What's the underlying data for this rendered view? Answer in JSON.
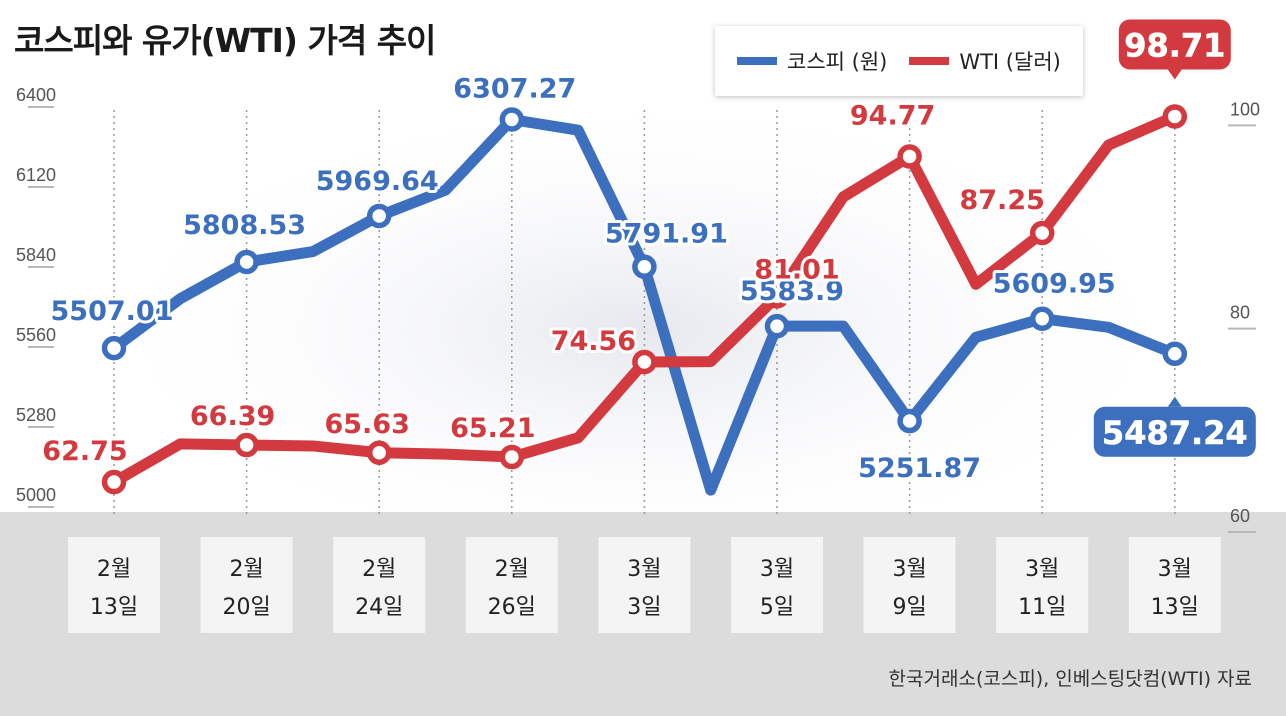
{
  "title": "코스피와 유가(WTI) 가격 추이",
  "source": "한국거래소(코스피), 인베스팅닷컴(WTI) 자료",
  "colors": {
    "kospi": "#3c6fbd",
    "wti": "#d23a40",
    "band": "#dcdcdc",
    "date_box": "#f4f4f4"
  },
  "chart_data": {
    "type": "line",
    "title": "코스피와 유가(WTI) 가격 추이",
    "x": [
      {
        "line1": "2월",
        "line2": "13일"
      },
      {
        "line1": "2월",
        "line2": "20일"
      },
      {
        "line1": "2월",
        "line2": "24일"
      },
      {
        "line1": "2월",
        "line2": "26일"
      },
      {
        "line1": "3월",
        "line2": "3일"
      },
      {
        "line1": "3월",
        "line2": "5일"
      },
      {
        "line1": "3월",
        "line2": "9일"
      },
      {
        "line1": "3월",
        "line2": "11일"
      },
      {
        "line1": "3월",
        "line2": "13일"
      }
    ],
    "left_axis": {
      "range": [
        5000,
        6400
      ],
      "ticks": [
        "5000",
        "5280",
        "5560",
        "5840",
        "6120",
        "6400"
      ]
    },
    "right_axis": {
      "range": [
        60,
        102
      ],
      "ticks": [
        "60",
        "80",
        "100"
      ]
    },
    "legend": {
      "placement": "top-right"
    },
    "grid": false,
    "series": [
      {
        "name": "코스피 (원)",
        "axis": "left",
        "points": [
          {
            "x": 0,
            "y": 5507.01,
            "label": "5507.01",
            "marker": true
          },
          {
            "x": 0.5,
            "y": 5680
          },
          {
            "x": 1,
            "y": 5808.53,
            "label": "5808.53",
            "marker": true
          },
          {
            "x": 1.5,
            "y": 5845
          },
          {
            "x": 2,
            "y": 5969.64,
            "label": "5969.64",
            "marker": true
          },
          {
            "x": 2.5,
            "y": 6060
          },
          {
            "x": 3,
            "y": 6307.27,
            "label": "6307.27",
            "marker": true
          },
          {
            "x": 3.5,
            "y": 6270
          },
          {
            "x": 4,
            "y": 5791.91,
            "label": "5791.91",
            "marker": true
          },
          {
            "x": 4.5,
            "y": 5010
          },
          {
            "x": 5,
            "y": 5583.9,
            "label": "5583.9",
            "marker": true
          },
          {
            "x": 5.5,
            "y": 5583.9
          },
          {
            "x": 6,
            "y": 5251.87,
            "label": "5251.87",
            "marker": true
          },
          {
            "x": 6.5,
            "y": 5545
          },
          {
            "x": 7,
            "y": 5609.95,
            "label": "5609.95",
            "marker": true
          },
          {
            "x": 7.5,
            "y": 5580
          },
          {
            "x": 8,
            "y": 5487.24,
            "label": "5487.24",
            "marker": true
          }
        ]
      },
      {
        "name": "WTI (달러)",
        "axis": "right",
        "points": [
          {
            "x": 0,
            "y": 62.75,
            "label": "62.75",
            "marker": true
          },
          {
            "x": 0.5,
            "y": 66.5
          },
          {
            "x": 1,
            "y": 66.39,
            "label": "66.39",
            "marker": true
          },
          {
            "x": 1.5,
            "y": 66.3
          },
          {
            "x": 2,
            "y": 65.63,
            "label": "65.63",
            "marker": true
          },
          {
            "x": 2.5,
            "y": 65.5
          },
          {
            "x": 3,
            "y": 65.21,
            "label": "65.21",
            "marker": true
          },
          {
            "x": 3.5,
            "y": 67.1
          },
          {
            "x": 4,
            "y": 74.56,
            "label": "74.56",
            "marker": true
          },
          {
            "x": 4.5,
            "y": 74.6
          },
          {
            "x": 5,
            "y": 81.01,
            "label": "81.01",
            "marker": true
          },
          {
            "x": 5.5,
            "y": 90.8
          },
          {
            "x": 6,
            "y": 94.77,
            "label": "94.77",
            "marker": true
          },
          {
            "x": 6.5,
            "y": 82.2
          },
          {
            "x": 7,
            "y": 87.25,
            "label": "87.25",
            "marker": true
          },
          {
            "x": 7.5,
            "y": 95.9
          },
          {
            "x": 8,
            "y": 98.71,
            "label": "98.71",
            "marker": true
          }
        ]
      }
    ]
  }
}
